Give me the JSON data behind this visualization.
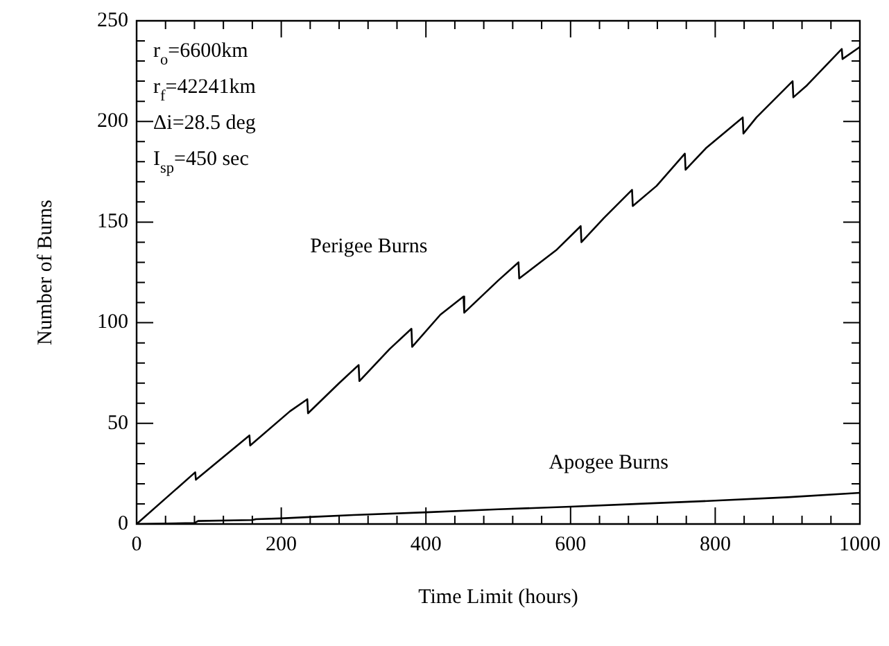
{
  "chart_data": {
    "type": "line",
    "xlabel": "Time Limit (hours)",
    "ylabel": "Number of Burns",
    "xlim": [
      0,
      1000
    ],
    "ylim": [
      0,
      250
    ],
    "xticks": [
      0,
      {
        "value": 40,
        "label": null
      },
      {
        "value": 80,
        "label": null
      },
      {
        "value": 120,
        "label": null
      },
      {
        "value": 160,
        "label": null
      },
      200,
      {
        "value": 240,
        "label": null
      },
      {
        "value": 280,
        "label": null
      },
      {
        "value": 320,
        "label": null
      },
      {
        "value": 360,
        "label": null
      },
      400,
      {
        "value": 440,
        "label": null
      },
      {
        "value": 480,
        "label": null
      },
      {
        "value": 520,
        "label": null
      },
      {
        "value": 560,
        "label": null
      },
      600,
      {
        "value": 640,
        "label": null
      },
      {
        "value": 680,
        "label": null
      },
      {
        "value": 720,
        "label": null
      },
      {
        "value": 760,
        "label": null
      },
      800,
      {
        "value": 840,
        "label": null
      },
      {
        "value": 880,
        "label": null
      },
      {
        "value": 920,
        "label": null
      },
      {
        "value": 960,
        "label": null
      },
      1000
    ],
    "yticks": [
      0,
      {
        "value": 10,
        "label": null
      },
      {
        "value": 20,
        "label": null
      },
      {
        "value": 30,
        "label": null
      },
      {
        "value": 40,
        "label": null
      },
      50,
      {
        "value": 60,
        "label": null
      },
      {
        "value": 70,
        "label": null
      },
      {
        "value": 80,
        "label": null
      },
      {
        "value": 90,
        "label": null
      },
      100,
      {
        "value": 110,
        "label": null
      },
      {
        "value": 120,
        "label": null
      },
      {
        "value": 130,
        "label": null
      },
      {
        "value": 140,
        "label": null
      },
      150,
      {
        "value": 160,
        "label": null
      },
      {
        "value": 170,
        "label": null
      },
      {
        "value": 180,
        "label": null
      },
      {
        "value": 190,
        "label": null
      },
      200,
      {
        "value": 210,
        "label": null
      },
      {
        "value": 220,
        "label": null
      },
      {
        "value": 230,
        "label": null
      },
      {
        "value": 240,
        "label": null
      },
      250
    ],
    "grid": false,
    "legend": false,
    "marker": "none",
    "line_style": "solid",
    "series": [
      {
        "name": "Perigee Burns",
        "color": "#000000",
        "x": [
          0,
          81,
          82,
          156,
          157,
          212,
          236,
          237,
          280,
          307,
          308,
          350,
          380,
          381,
          420,
          452,
          453,
          500,
          528,
          529,
          580,
          614,
          615,
          646,
          685,
          686,
          719,
          758,
          759,
          788,
          838,
          839,
          857,
          907,
          908,
          927,
          975,
          976,
          1000
        ],
        "values": [
          0,
          25.7,
          22,
          44,
          39,
          56,
          62,
          55,
          70,
          79,
          71,
          87,
          97,
          88,
          104,
          113,
          105,
          121,
          130,
          122,
          136,
          148,
          140,
          152,
          166,
          158,
          168,
          184,
          176,
          187,
          202,
          194,
          202,
          220,
          212,
          218,
          236,
          231,
          237
        ]
      },
      {
        "name": "Apogee Burns",
        "color": "#000000",
        "x": [
          0,
          80,
          85,
          160,
          165,
          200,
          240,
          300,
          400,
          500,
          600,
          700,
          800,
          900,
          1000
        ],
        "values": [
          0,
          0.5,
          1.5,
          2,
          2.4,
          2.8,
          3.5,
          4.5,
          5.8,
          7.3,
          8.6,
          10.1,
          11.6,
          13.3,
          15.5
        ]
      }
    ],
    "annotations": [
      "r$_{o}$=6600km",
      "r$_{f}$=42241km",
      "Δi=28.5 deg",
      "I$_{sp}$=450 sec"
    ]
  }
}
